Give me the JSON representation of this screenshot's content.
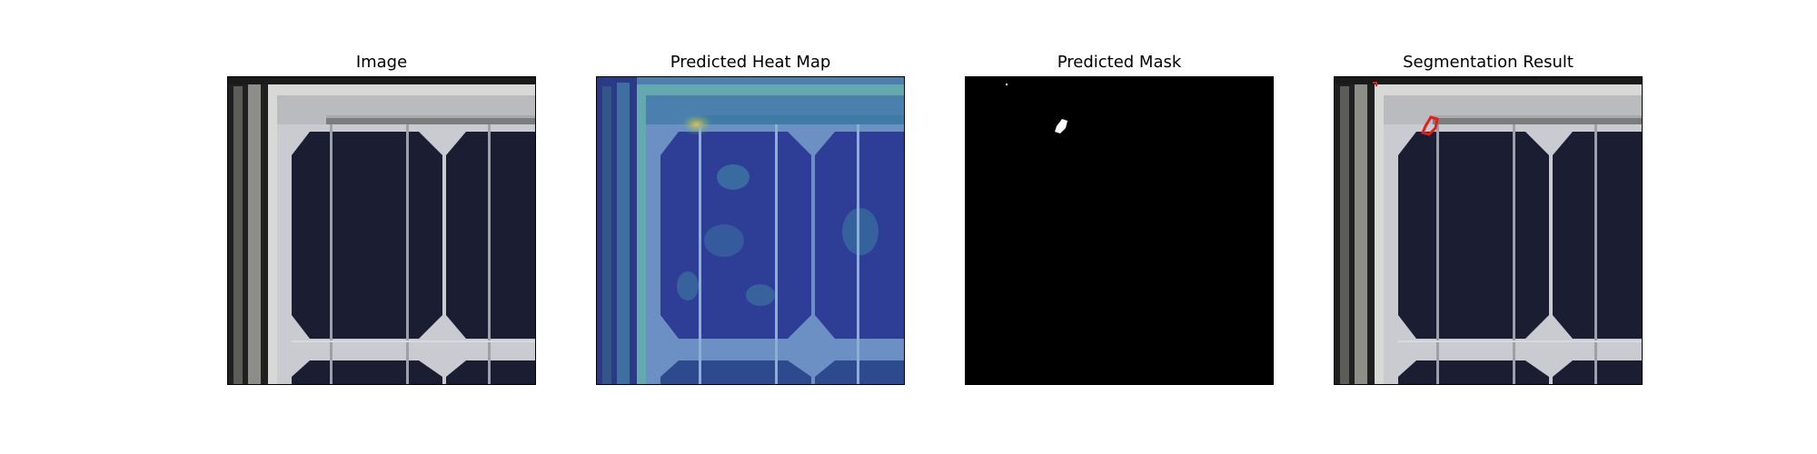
{
  "figure": {
    "panels": [
      {
        "title": "Image",
        "kind": "photo"
      },
      {
        "title": "Predicted Heat Map",
        "kind": "heatmap"
      },
      {
        "title": "Predicted Mask",
        "kind": "mask"
      },
      {
        "title": "Segmentation Result",
        "kind": "overlay"
      }
    ]
  },
  "colors": {
    "cell": "#1b1d33",
    "cell_grid": "#262a47",
    "backsheet": "#c9cbd0",
    "frame_metal": "#8a8c8c",
    "busbar": "#9ea0a6",
    "heatmap_low": "#2a3f9a",
    "heatmap_mid": "#2f9a9a",
    "heatmap_high": "#c9b43a",
    "mask_bg": "#000000",
    "mask_fg": "#ffffff",
    "contour": "#e0201b"
  }
}
